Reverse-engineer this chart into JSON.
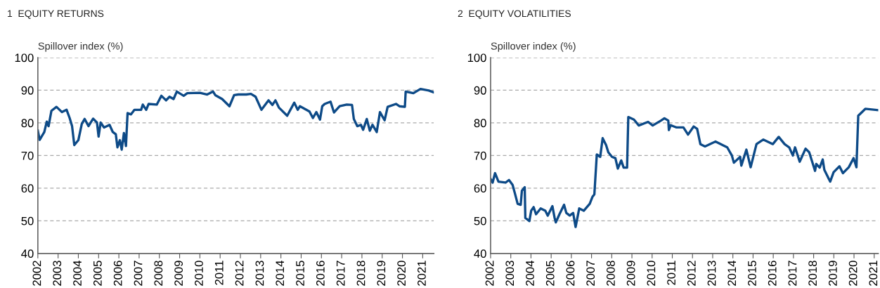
{
  "chart_data": [
    {
      "type": "line",
      "title": "1  EQUITY RETURNS",
      "ylabel": "Spillover index (%)",
      "xlim": [
        2002,
        2021.55
      ],
      "xticks": [
        2002,
        2003,
        2004,
        2005,
        2006,
        2007,
        2008,
        2009,
        2010,
        2011,
        2012,
        2013,
        2014,
        2015,
        2016,
        2017,
        2018,
        2019,
        2020,
        2021
      ],
      "ylim": [
        40,
        100
      ],
      "yticks": [
        40,
        50,
        60,
        70,
        80,
        90,
        100
      ],
      "grid": "y",
      "line_style": "solid",
      "series": [
        {
          "color": "#0d4a87",
          "x": [
            2002.0,
            2002.09,
            2002.32,
            2002.44,
            2002.53,
            2002.67,
            2002.92,
            2003.19,
            2003.42,
            2003.57,
            2003.69,
            2003.8,
            2004.0,
            2004.17,
            2004.31,
            2004.5,
            2004.73,
            2004.92,
            2005.0,
            2005.1,
            2005.27,
            2005.54,
            2005.7,
            2005.85,
            2005.93,
            2006.05,
            2006.14,
            2006.25,
            2006.35,
            2006.43,
            2006.6,
            2006.77,
            2007.1,
            2007.18,
            2007.35,
            2007.47,
            2007.87,
            2008.1,
            2008.33,
            2008.5,
            2008.7,
            2008.86,
            2009.2,
            2009.38,
            2010.0,
            2010.36,
            2010.65,
            2010.76,
            2011.1,
            2011.46,
            2011.69,
            2011.9,
            2012.29,
            2012.52,
            2012.75,
            2013.04,
            2013.39,
            2013.58,
            2013.73,
            2013.9,
            2014.31,
            2014.66,
            2014.83,
            2014.94,
            2015.41,
            2015.58,
            2015.75,
            2015.93,
            2016.04,
            2016.16,
            2016.45,
            2016.62,
            2016.9,
            2017.25,
            2017.51,
            2017.6,
            2017.77,
            2017.95,
            2018.06,
            2018.24,
            2018.39,
            2018.52,
            2018.73,
            2018.89,
            2019.12,
            2019.27,
            2019.68,
            2019.85,
            2020.12,
            2020.16,
            2020.54,
            2020.89,
            2021.3,
            2021.53
          ],
          "values": [
            77.6,
            74.8,
            77.2,
            80.4,
            79,
            83.7,
            84.9,
            83.3,
            84,
            81.5,
            79,
            73.2,
            74.7,
            79.7,
            81.2,
            79,
            81.3,
            80.1,
            75.8,
            80.1,
            78.6,
            79.4,
            77.2,
            76.5,
            72.5,
            74.7,
            71.8,
            76.9,
            72.9,
            83,
            82.6,
            84,
            84,
            85.6,
            84,
            85.8,
            85.6,
            88.3,
            86.9,
            88,
            87.3,
            89.6,
            88.3,
            89.1,
            89.2,
            88.7,
            89.6,
            88.5,
            87.3,
            85.1,
            88.5,
            88.7,
            88.7,
            88.9,
            88,
            84,
            86.9,
            85.5,
            86.9,
            84.7,
            82.2,
            86.2,
            84,
            85.1,
            83.5,
            81.5,
            83.3,
            81,
            85.1,
            85.8,
            86.5,
            83.2,
            85.1,
            85.6,
            85.5,
            81.2,
            79,
            79.4,
            77.9,
            81.2,
            77.6,
            79.4,
            77.2,
            83.3,
            80.8,
            84.9,
            85.8,
            85.1,
            84.9,
            89.6,
            89.1,
            90.4,
            89.9,
            89.4
          ]
        }
      ]
    },
    {
      "type": "line",
      "title": "2  EQUITY VOLATILITIES",
      "ylabel": "Spillover index (%)",
      "xlim": [
        2002,
        2021.2
      ],
      "xticks": [
        2002,
        2003,
        2004,
        2005,
        2006,
        2007,
        2008,
        2009,
        2010,
        2011,
        2012,
        2013,
        2014,
        2015,
        2016,
        2017,
        2018,
        2019,
        2020,
        2021
      ],
      "ylim": [
        40,
        100
      ],
      "yticks": [
        40,
        50,
        60,
        70,
        80,
        90,
        100
      ],
      "grid": "y",
      "line_style": "solid",
      "series": [
        {
          "color": "#0d4a87",
          "x": [
            2002.0,
            2002.1,
            2002.22,
            2002.39,
            2002.74,
            2002.91,
            2003.09,
            2003.2,
            2003.34,
            2003.49,
            2003.55,
            2003.69,
            2003.72,
            2003.92,
            2004.01,
            2004.13,
            2004.25,
            2004.48,
            2004.71,
            2004.83,
            2005.06,
            2005.17,
            2005.23,
            2005.41,
            2005.64,
            2005.75,
            2005.92,
            2006.09,
            2006.21,
            2006.39,
            2006.62,
            2006.91,
            2007.05,
            2007.14,
            2007.26,
            2007.43,
            2007.55,
            2007.72,
            2007.83,
            2008.01,
            2008.18,
            2008.3,
            2008.47,
            2008.59,
            2008.76,
            2008.82,
            2009.1,
            2009.34,
            2009.8,
            2010.03,
            2010.44,
            2010.61,
            2010.8,
            2010.83,
            2010.92,
            2011.21,
            2011.55,
            2011.78,
            2012.06,
            2012.23,
            2012.39,
            2012.62,
            2013.14,
            2013.49,
            2013.72,
            2013.95,
            2014.05,
            2014.36,
            2014.42,
            2014.67,
            2014.88,
            2015.17,
            2015.51,
            2015.98,
            2016.27,
            2016.56,
            2016.79,
            2016.97,
            2017.08,
            2017.31,
            2017.6,
            2017.78,
            2018.07,
            2018.13,
            2018.3,
            2018.45,
            2018.53,
            2018.82,
            2018.99,
            2019.28,
            2019.45,
            2019.74,
            2019.98,
            2020.12,
            2020.21,
            2020.56,
            2021.19
          ],
          "values": [
            62.8,
            61.7,
            64.6,
            62,
            61.7,
            62.5,
            61,
            58.5,
            55.2,
            54.9,
            59.2,
            60.3,
            50.9,
            49.9,
            53.1,
            54.2,
            52,
            53.8,
            53.1,
            51.6,
            54.5,
            50.9,
            49.5,
            52,
            54.9,
            52.4,
            51.6,
            52.4,
            48.1,
            53.8,
            53.1,
            55.2,
            57.4,
            58.1,
            70.3,
            69.6,
            75.3,
            73.2,
            71,
            69.6,
            69.2,
            66,
            68.5,
            66.3,
            66.3,
            81.8,
            81,
            79.2,
            80.3,
            79.2,
            80.7,
            81.4,
            80.7,
            77.8,
            79.3,
            78.6,
            78.6,
            76.4,
            78.9,
            78.2,
            73.5,
            72.8,
            74.3,
            73.2,
            72.5,
            70,
            67.8,
            69.6,
            66.9,
            71.8,
            66.4,
            73.5,
            74.9,
            73.5,
            75.7,
            73.5,
            72.5,
            70,
            72.5,
            68.1,
            72.1,
            71,
            65.3,
            67.4,
            66.3,
            68.8,
            65.6,
            62,
            64.9,
            66.7,
            64.6,
            66.4,
            69.2,
            66.4,
            82.2,
            84.3,
            83.9
          ]
        }
      ]
    }
  ]
}
